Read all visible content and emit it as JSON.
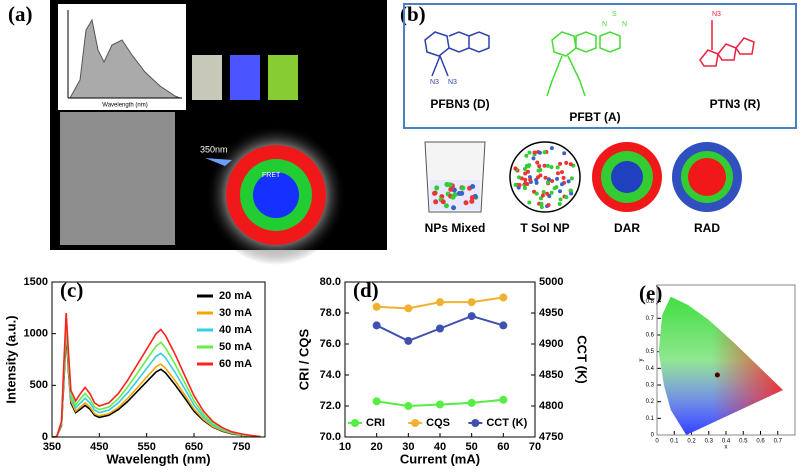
{
  "panel_a": {
    "label": "(a)",
    "inset_xlabel": "Wavelength (nm)",
    "excitation": "350nm",
    "transfer": "FRET"
  },
  "panel_b": {
    "label": "(b)",
    "polymers": [
      "PFBN3 (D)",
      "PFBT (A)",
      "PTN3 (R)"
    ],
    "atoms": [
      "N3",
      "N3",
      "S",
      "N",
      "N",
      "N3"
    ],
    "particles": [
      "NPs Mixed",
      "T Sol NP",
      "DAR",
      "RAD"
    ]
  },
  "chart_data": [
    {
      "type": "line",
      "label": "(c)",
      "xlabel": "Wavelength (nm)",
      "ylabel": "Intensity (a.u.)",
      "xlim": [
        350,
        800
      ],
      "xticks": [
        350,
        450,
        550,
        650,
        750
      ],
      "ylim": [
        0,
        1500
      ],
      "yticks": [
        0,
        500,
        1000,
        1500
      ],
      "legend": "upper right",
      "markers": false,
      "x": [
        350,
        360,
        370,
        375,
        380,
        385,
        390,
        400,
        410,
        420,
        430,
        440,
        450,
        470,
        490,
        510,
        530,
        550,
        570,
        580,
        590,
        610,
        630,
        650,
        670,
        690,
        710,
        730,
        750,
        770,
        790
      ],
      "series": [
        {
          "name": "20 mA",
          "color": "#000000",
          "values": [
            0,
            3,
            110,
            520,
            1000,
            620,
            330,
            235,
            270,
            305,
            270,
            210,
            190,
            210,
            265,
            345,
            440,
            535,
            630,
            655,
            620,
            505,
            380,
            250,
            160,
            95,
            55,
            30,
            18,
            8,
            3
          ]
        },
        {
          "name": "30 mA",
          "color": "#f0a800",
          "values": [
            0,
            3,
            120,
            560,
            1050,
            650,
            350,
            250,
            290,
            330,
            290,
            225,
            205,
            225,
            285,
            375,
            475,
            580,
            680,
            705,
            665,
            545,
            410,
            270,
            170,
            100,
            60,
            35,
            20,
            9,
            3
          ]
        },
        {
          "name": "40 mA",
          "color": "#33d0e0",
          "values": [
            0,
            4,
            130,
            600,
            1100,
            700,
            380,
            280,
            330,
            375,
            330,
            260,
            235,
            260,
            330,
            430,
            545,
            665,
            780,
            810,
            765,
            625,
            470,
            310,
            195,
            115,
            70,
            40,
            22,
            10,
            4
          ]
        },
        {
          "name": "50 mA",
          "color": "#66ee44",
          "values": [
            0,
            4,
            140,
            650,
            1150,
            740,
            410,
            310,
            370,
            420,
            370,
            290,
            265,
            290,
            370,
            485,
            615,
            750,
            880,
            915,
            860,
            705,
            530,
            350,
            220,
            130,
            80,
            45,
            25,
            12,
            4
          ]
        },
        {
          "name": "60 mA",
          "color": "#ff2020",
          "values": [
            0,
            5,
            150,
            700,
            1200,
            800,
            450,
            350,
            420,
            480,
            420,
            330,
            300,
            330,
            420,
            550,
            700,
            850,
            1000,
            1040,
            980,
            800,
            600,
            400,
            250,
            150,
            90,
            50,
            30,
            15,
            5
          ]
        }
      ]
    },
    {
      "type": "line",
      "label": "(d)",
      "xlabel": "Current (mA)",
      "ylabel": "CRI / CQS",
      "y2label": "CCT (K)",
      "xlim": [
        10,
        70
      ],
      "xticks": [
        10,
        20,
        30,
        40,
        50,
        60,
        70
      ],
      "ylim": [
        70,
        80
      ],
      "yticks": [
        {
          "value": 70,
          "label": "70.0"
        },
        {
          "value": 72,
          "label": "72.0"
        },
        {
          "value": 74,
          "label": "74.0"
        },
        {
          "value": 76,
          "label": "76.0"
        },
        {
          "value": 78,
          "label": "78.0"
        },
        {
          "value": 80,
          "label": "80.0"
        }
      ],
      "y2lim": [
        4750,
        5000
      ],
      "y2ticks": [
        4750,
        4800,
        4850,
        4900,
        4950,
        5000
      ],
      "legend": "lower center",
      "markers": true,
      "x": [
        20,
        30,
        40,
        50,
        60
      ],
      "series": [
        {
          "name": "CRI",
          "color": "#55ee44",
          "values": [
            72.3,
            72.0,
            72.1,
            72.2,
            72.4
          ]
        },
        {
          "name": "CQS",
          "color": "#f0b030",
          "values": [
            78.4,
            78.3,
            78.7,
            78.7,
            79.0
          ]
        },
        {
          "name": "CCT (K)",
          "color": "#4050b0",
          "axis": "y2",
          "values": [
            4930,
            4905,
            4925,
            4945,
            4930
          ]
        }
      ]
    },
    {
      "type": "cie",
      "label": "(e)",
      "xlabel": "x",
      "ylabel": "y",
      "xlim": [
        0,
        0.8
      ],
      "xticks": [
        0,
        0.1,
        0.2,
        0.3,
        0.4,
        0.5,
        0.6,
        0.7
      ],
      "ylim": [
        0,
        0.9
      ],
      "yticks": [
        0,
        0.1,
        0.2,
        0.3,
        0.4,
        0.5,
        0.6,
        0.7,
        0.8
      ],
      "x": [
        0.35
      ],
      "values": [
        0.36
      ]
    }
  ]
}
